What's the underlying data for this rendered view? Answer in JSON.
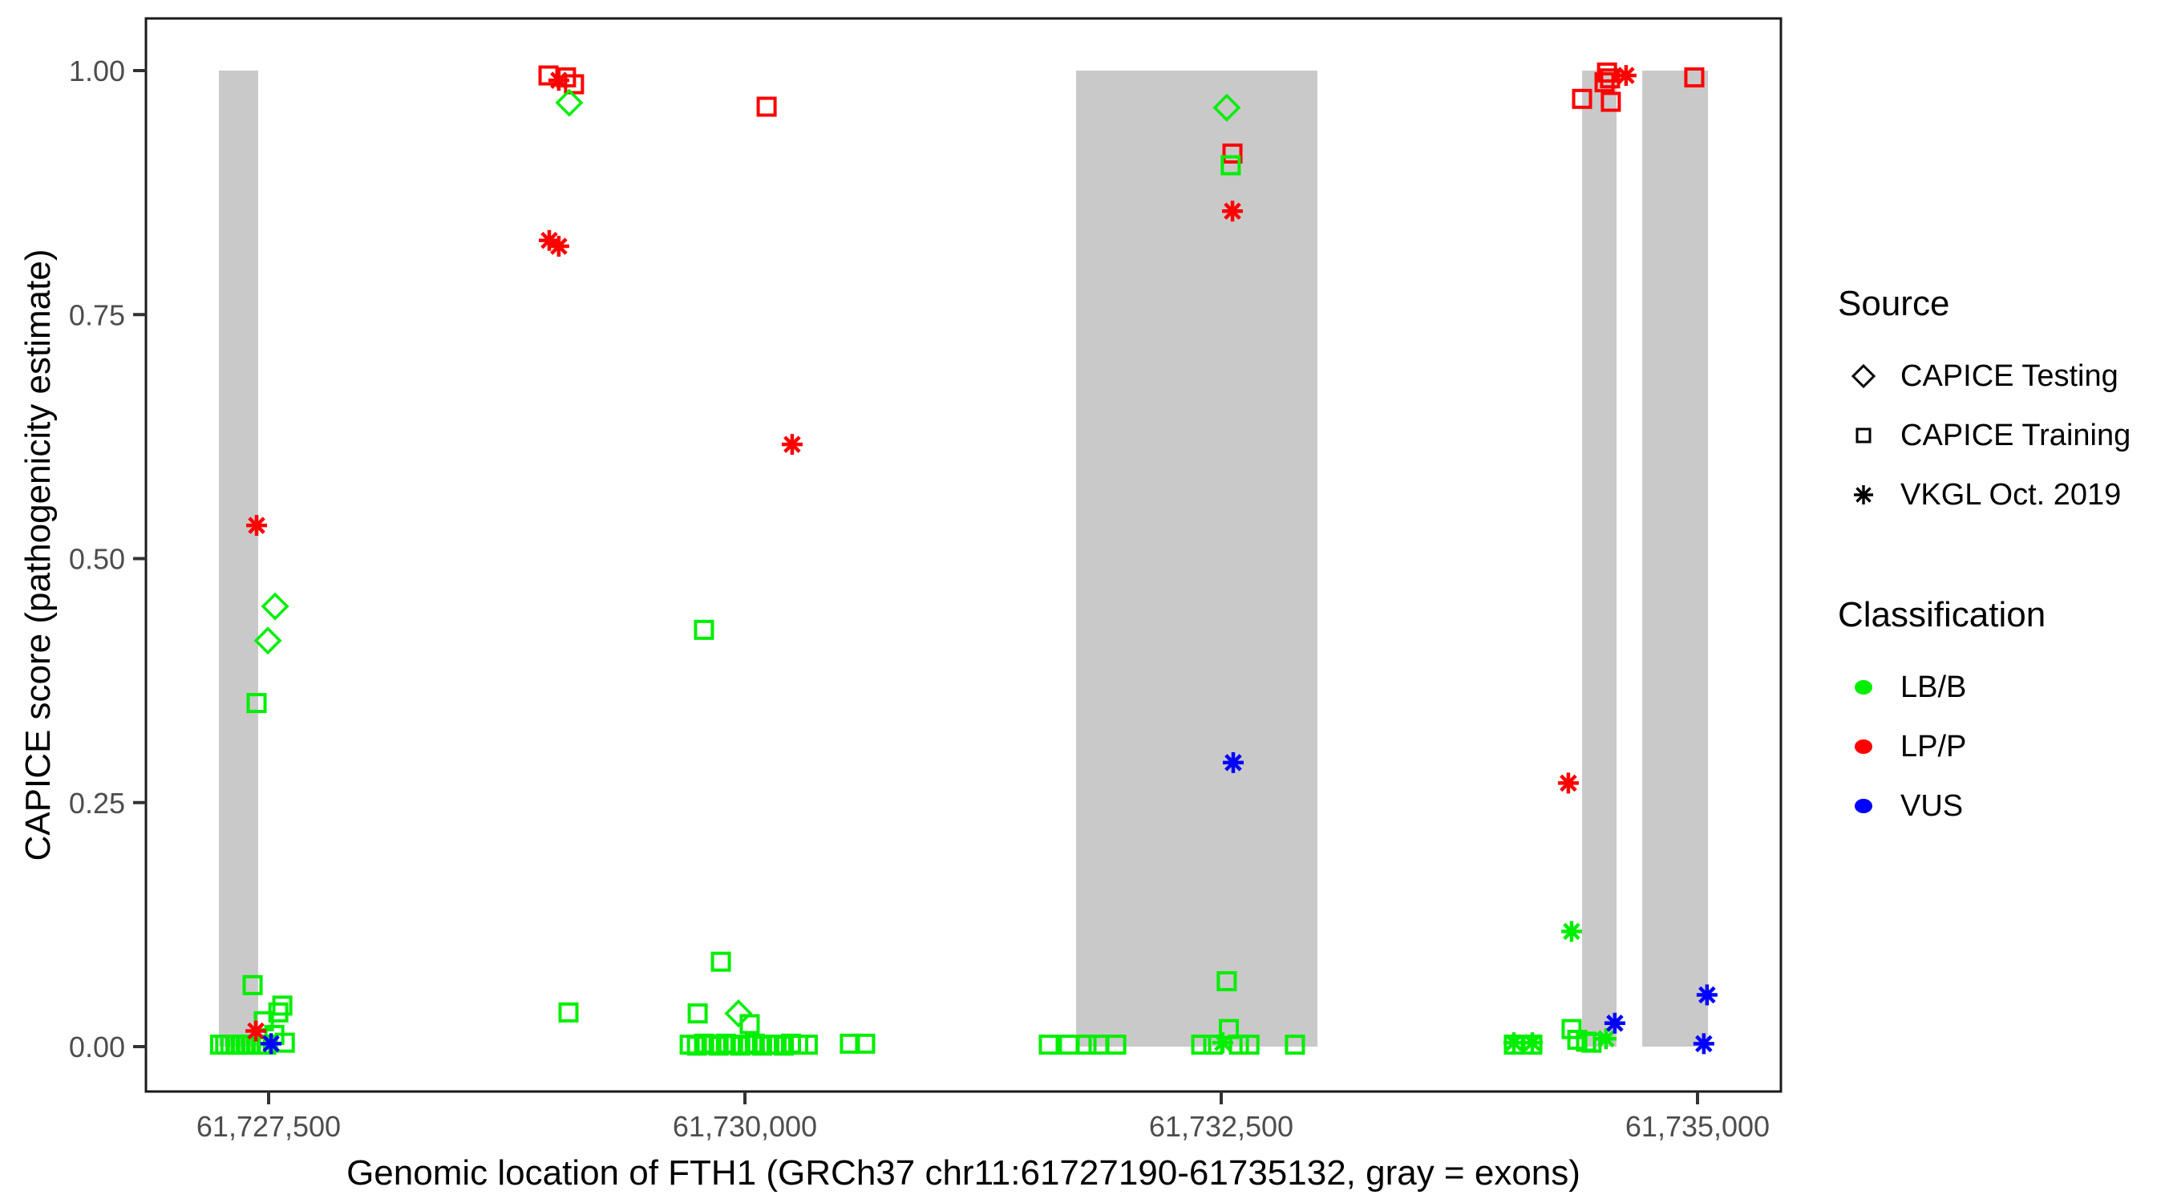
{
  "figure": {
    "kind": "ggplot-style scatter plot",
    "background": "#ffffff"
  },
  "colors": {
    "exon_gray": "#c9c9c9",
    "panel_border": "#1a1a1a",
    "tick_mark": "#333333",
    "tick_label": "#4d4d4d",
    "title_text": "#000000"
  },
  "legend": {
    "source": {
      "title": "Source",
      "items": [
        {
          "shape": "diamond",
          "label": "CAPICE Testing"
        },
        {
          "shape": "square",
          "label": "CAPICE Training"
        },
        {
          "shape": "asterisk",
          "label": "VKGL Oct. 2019"
        }
      ]
    },
    "classification": {
      "title": "Classification",
      "items": [
        {
          "label": "LB/B",
          "hex": "#00ee00"
        },
        {
          "label": "LP/P",
          "hex": "#ff0000"
        },
        {
          "label": "VUS",
          "hex": "#0000ff"
        }
      ]
    }
  },
  "chart_data": {
    "type": "scatter",
    "title": "",
    "xlabel": "Genomic location of FTH1 (GRCh37 chr11:61727190-61735132, gray = exons)",
    "ylabel": "CAPICE score (pathogenicity estimate)",
    "x_axis": {
      "ticks": [
        {
          "bp": 61727500,
          "label": "61,727,500"
        },
        {
          "bp": 61730000,
          "label": "61,730,000"
        },
        {
          "bp": 61732500,
          "label": "61,732,500"
        },
        {
          "bp": 61735000,
          "label": "61,735,000"
        }
      ],
      "region": [
        61727190,
        61735132
      ]
    },
    "y_axis": {
      "ticks": [
        {
          "v": 0.0,
          "label": "0.00"
        },
        {
          "v": 0.25,
          "label": "0.25"
        },
        {
          "v": 0.5,
          "label": "0.50"
        },
        {
          "v": 0.75,
          "label": "0.75"
        },
        {
          "v": 1.0,
          "label": "1.00"
        }
      ],
      "range": [
        0,
        1
      ],
      "grid": false
    },
    "legend_position": "right",
    "class_colors": {
      "LB": "#00ee00",
      "LP": "#ff0000",
      "VU": "#0000ff"
    },
    "shape_meaning": {
      "sq": "CAPICE Training (open square)",
      "di": "CAPICE Testing (open diamond)",
      "as": "VKGL Oct. 2019 (asterisk)"
    },
    "class_meaning": {
      "LB": "LB/B",
      "LP": "LP/P",
      "VU": "VUS"
    },
    "exons_bp": [
      [
        61727239,
        61727445
      ],
      [
        61731738,
        61733005
      ],
      [
        61734394,
        61734575
      ],
      [
        61734710,
        61735055
      ]
    ],
    "point_format": [
      "bp",
      "score",
      "shape",
      "class"
    ],
    "points": [
      [
        61727245,
        0.002,
        "sq",
        "LB"
      ],
      [
        61727272,
        0.002,
        "sq",
        "LB"
      ],
      [
        61727299,
        0.002,
        "sq",
        "LB"
      ],
      [
        61727326,
        0.002,
        "sq",
        "LB"
      ],
      [
        61727353,
        0.002,
        "sq",
        "LB"
      ],
      [
        61727380,
        0.002,
        "sq",
        "LB"
      ],
      [
        61727407,
        0.002,
        "sq",
        "LB"
      ],
      [
        61727434,
        0.002,
        "sq",
        "LB"
      ],
      [
        61727461,
        0.002,
        "sq",
        "LB"
      ],
      [
        61727488,
        0.002,
        "sq",
        "LB"
      ],
      [
        61727530,
        0.012,
        "sq",
        "LB"
      ],
      [
        61727585,
        0.004,
        "sq",
        "LB"
      ],
      [
        61727416,
        0.063,
        "sq",
        "LB"
      ],
      [
        61727475,
        0.026,
        "sq",
        "LB"
      ],
      [
        61727551,
        0.035,
        "sq",
        "LB"
      ],
      [
        61727572,
        0.042,
        "sq",
        "LB"
      ],
      [
        61727433,
        0.016,
        "as",
        "LP"
      ],
      [
        61727513,
        0.003,
        "as",
        "VU"
      ],
      [
        61727437,
        0.534,
        "as",
        "LP"
      ],
      [
        61727534,
        0.451,
        "di",
        "LB"
      ],
      [
        61727496,
        0.416,
        "di",
        "LB"
      ],
      [
        61727437,
        0.352,
        "sq",
        "LB"
      ],
      [
        61728969,
        0.995,
        "sq",
        "LP"
      ],
      [
        61729061,
        0.993,
        "sq",
        "LP"
      ],
      [
        61729103,
        0.986,
        "sq",
        "LP"
      ],
      [
        61729023,
        0.99,
        "as",
        "LP"
      ],
      [
        61729078,
        0.967,
        "di",
        "LB"
      ],
      [
        61728973,
        0.826,
        "as",
        "LP"
      ],
      [
        61729023,
        0.82,
        "as",
        "LP"
      ],
      [
        61730114,
        0.963,
        "sq",
        "LP"
      ],
      [
        61730248,
        0.617,
        "as",
        "LP"
      ],
      [
        61729785,
        0.427,
        "sq",
        "LB"
      ],
      [
        61729074,
        0.035,
        "sq",
        "LB"
      ],
      [
        61729874,
        0.087,
        "sq",
        "LB"
      ],
      [
        61729752,
        0.034,
        "sq",
        "LB"
      ],
      [
        61729966,
        0.034,
        "di",
        "LB"
      ],
      [
        61730025,
        0.023,
        "sq",
        "LB"
      ],
      [
        61729710,
        0.002,
        "sq",
        "LB"
      ],
      [
        61729748,
        0.001,
        "sq",
        "LB"
      ],
      [
        61729786,
        0.003,
        "sq",
        "LB"
      ],
      [
        61729824,
        0.002,
        "sq",
        "LB"
      ],
      [
        61729862,
        0.001,
        "sq",
        "LB"
      ],
      [
        61729900,
        0.003,
        "sq",
        "LB"
      ],
      [
        61729938,
        0.002,
        "sq",
        "LB"
      ],
      [
        61729976,
        0.001,
        "sq",
        "LB"
      ],
      [
        61730014,
        0.002,
        "sq",
        "LB"
      ],
      [
        61730052,
        0.003,
        "sq",
        "LB"
      ],
      [
        61730090,
        0.001,
        "sq",
        "LB"
      ],
      [
        61730128,
        0.002,
        "sq",
        "LB"
      ],
      [
        61730166,
        0.002,
        "sq",
        "LB"
      ],
      [
        61730204,
        0.001,
        "sq",
        "LB"
      ],
      [
        61730242,
        0.003,
        "sq",
        "LB"
      ],
      [
        61730280,
        0.002,
        "sq",
        "LB"
      ],
      [
        61730330,
        0.002,
        "sq",
        "LB"
      ],
      [
        61730551,
        0.003,
        "sq",
        "LB"
      ],
      [
        61730631,
        0.003,
        "sq",
        "LB"
      ],
      [
        61731595,
        0.002,
        "sq",
        "LB"
      ],
      [
        61731700,
        0.002,
        "sq",
        "LB"
      ],
      [
        61731793,
        0.002,
        "sq",
        "LB"
      ],
      [
        61731856,
        0.002,
        "sq",
        "LB"
      ],
      [
        61731949,
        0.002,
        "sq",
        "LB"
      ],
      [
        61732395,
        0.002,
        "sq",
        "LB"
      ],
      [
        61732458,
        0.002,
        "sq",
        "LB"
      ],
      [
        61732593,
        0.002,
        "sq",
        "LB"
      ],
      [
        61732648,
        0.002,
        "sq",
        "LB"
      ],
      [
        61732508,
        0.004,
        "as",
        "LB"
      ],
      [
        61732529,
        0.067,
        "sq",
        "LB"
      ],
      [
        61732540,
        0.018,
        "sq",
        "LB"
      ],
      [
        61732887,
        0.002,
        "sq",
        "LB"
      ],
      [
        61732529,
        0.962,
        "di",
        "LB"
      ],
      [
        61732559,
        0.915,
        "sq",
        "LP"
      ],
      [
        61732550,
        0.903,
        "sq",
        "LB"
      ],
      [
        61732559,
        0.856,
        "as",
        "LP"
      ],
      [
        61732563,
        0.291,
        "as",
        "VU"
      ],
      [
        61734036,
        0.002,
        "sq",
        "LB"
      ],
      [
        61734036,
        0.004,
        "as",
        "LB"
      ],
      [
        61734133,
        0.002,
        "sq",
        "LB"
      ],
      [
        61734133,
        0.004,
        "as",
        "LB"
      ],
      [
        61734322,
        0.27,
        "as",
        "LP"
      ],
      [
        61734339,
        0.118,
        "as",
        "LB"
      ],
      [
        61734339,
        0.018,
        "sq",
        "LB"
      ],
      [
        61734369,
        0.007,
        "sq",
        "LB"
      ],
      [
        61734415,
        0.005,
        "sq",
        "LB"
      ],
      [
        61734444,
        0.004,
        "sq",
        "LB"
      ],
      [
        61734520,
        0.008,
        "as",
        "LB"
      ],
      [
        61734566,
        0.024,
        "as",
        "VU"
      ],
      [
        61734394,
        0.971,
        "sq",
        "LP"
      ],
      [
        61734512,
        0.988,
        "sq",
        "LP"
      ],
      [
        61734525,
        0.998,
        "sq",
        "LP"
      ],
      [
        61734541,
        0.992,
        "sq",
        "LP"
      ],
      [
        61734545,
        0.968,
        "sq",
        "LP"
      ],
      [
        61734625,
        0.995,
        "as",
        "LP"
      ],
      [
        61734983,
        0.993,
        "sq",
        "LP"
      ],
      [
        61735050,
        0.053,
        "as",
        "VU"
      ],
      [
        61735033,
        0.003,
        "as",
        "VU"
      ]
    ]
  }
}
